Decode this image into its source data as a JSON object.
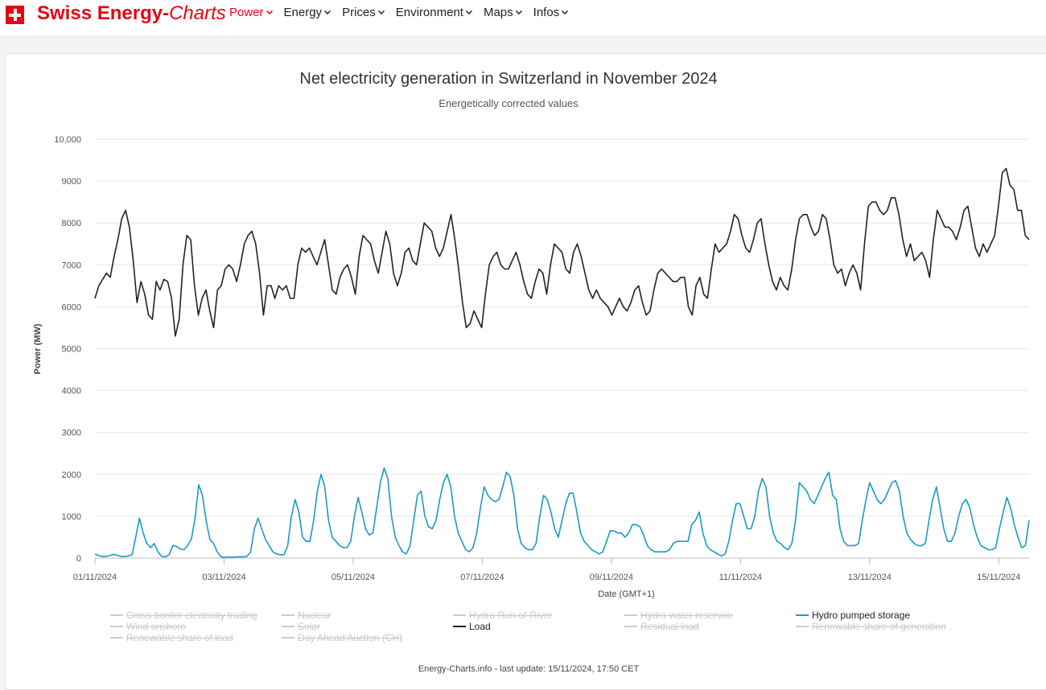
{
  "nav": {
    "brand_main": "Swiss Energy-",
    "brand_italic": "Charts",
    "menu": [
      {
        "label": "Power",
        "active": true
      },
      {
        "label": "Energy",
        "active": false
      },
      {
        "label": "Prices",
        "active": false
      },
      {
        "label": "Environment",
        "active": false
      },
      {
        "label": "Maps",
        "active": false
      },
      {
        "label": "Infos",
        "active": false
      }
    ]
  },
  "chart_data": {
    "type": "line",
    "title": "Net electricity generation in Switzerland in November 2024",
    "subtitle": "Energetically corrected values",
    "xlabel": "Date (GMT+1)",
    "ylabel": "Power (MW)",
    "ylim": [
      0,
      10000
    ],
    "xlim": [
      0,
      14.47
    ],
    "yticks": [
      {
        "value": 0,
        "label": "0"
      },
      {
        "value": 1000,
        "label": "1000"
      },
      {
        "value": 2000,
        "label": "2000"
      },
      {
        "value": 3000,
        "label": "3000"
      },
      {
        "value": 4000,
        "label": "4000"
      },
      {
        "value": 5000,
        "label": "5000"
      },
      {
        "value": 6000,
        "label": "6000"
      },
      {
        "value": 7000,
        "label": "7000"
      },
      {
        "value": 8000,
        "label": "8000"
      },
      {
        "value": 9000,
        "label": "9000"
      },
      {
        "value": 10000,
        "label": "10,000"
      }
    ],
    "xticks": [
      {
        "value": 0,
        "label": "01/11/2024"
      },
      {
        "value": 2,
        "label": "03/11/2024"
      },
      {
        "value": 4,
        "label": "05/11/2024"
      },
      {
        "value": 6,
        "label": "07/11/2024"
      },
      {
        "value": 8,
        "label": "09/11/2024"
      },
      {
        "value": 10,
        "label": "11/11/2024"
      },
      {
        "value": 12,
        "label": "13/11/2024"
      },
      {
        "value": 14,
        "label": "15/11/2024"
      }
    ],
    "series": [
      {
        "name": "Load",
        "color": "#222222",
        "day_offset": 0.0,
        "values": [
          6200,
          6500,
          6650,
          6800,
          6700,
          7200,
          7600,
          8100,
          8300,
          7900,
          7100,
          6100,
          6600,
          6300,
          5800,
          5700,
          6600,
          6400,
          6650,
          6600,
          6200,
          5300,
          5700,
          7000,
          7700,
          7600,
          6500,
          5800,
          6200,
          6400,
          5900,
          5500,
          6400,
          6500,
          6900,
          7000,
          6900,
          6600,
          7000,
          7500,
          7700,
          7800,
          7500,
          6800,
          5800,
          6500,
          6500,
          6200,
          6500,
          6400,
          6500,
          6200,
          6200,
          7000,
          7400,
          7300,
          7400,
          7200,
          7000,
          7300,
          7600,
          7000,
          6400,
          6300,
          6700,
          6900,
          7000,
          6700,
          6300,
          7200,
          7700,
          7600,
          7500,
          7100,
          6800,
          7300,
          7800,
          7500,
          6800,
          6500,
          6800,
          7300,
          7400,
          7100,
          7000,
          7500,
          8000,
          7900,
          7800,
          7400,
          7200,
          7400,
          7800,
          8200,
          7600,
          6900,
          6100,
          5500,
          5600,
          5900,
          5700,
          5500,
          6300,
          7000,
          7200,
          7300,
          7000,
          6900,
          6900,
          7100,
          7300,
          7000,
          6600,
          6300,
          6200,
          6600,
          6900,
          6800,
          6300,
          7000,
          7500,
          7400,
          7300,
          6900,
          6800,
          7300,
          7500,
          7200,
          6800,
          6400,
          6200,
          6400,
          6200,
          6100,
          6000,
          5800,
          6000,
          6200,
          6000,
          5900,
          6100,
          6400,
          6500,
          6100,
          5800,
          5900,
          6400,
          6800,
          6900,
          6800,
          6700,
          6600,
          6600,
          6700,
          6700,
          6000,
          5800,
          6500,
          6700,
          6300,
          6200,
          6900,
          7500,
          7300,
          7400,
          7500,
          7800,
          8200,
          8100,
          7700,
          7400,
          7300,
          7600,
          8000,
          8100,
          7500,
          7000,
          6600,
          6400,
          6700,
          6500,
          6400,
          6900,
          7600,
          8100,
          8200,
          8200,
          7900,
          7700,
          7800,
          8200,
          8100,
          7600,
          7000,
          6800,
          6900,
          6500,
          6800,
          7000,
          6800,
          6400,
          7500,
          8400,
          8500,
          8500,
          8300,
          8200,
          8300,
          8600,
          8600,
          8200,
          7600,
          7200,
          7500,
          7100,
          7200,
          7300,
          7100,
          6700,
          7600,
          8300,
          8100,
          7900,
          7900,
          7800,
          7600,
          7900,
          8300,
          8400,
          7900,
          7400,
          7200,
          7500,
          7300,
          7500,
          7700,
          8400,
          9200,
          9300,
          8900,
          8800,
          8300,
          8300,
          7700,
          7600
        ]
      },
      {
        "name": "Hydro pumped storage",
        "color": "#1a9ac7",
        "day_offset": 0.0,
        "values": [
          100,
          60,
          40,
          40,
          60,
          90,
          70,
          40,
          40,
          50,
          80,
          500,
          950,
          600,
          350,
          250,
          350,
          150,
          40,
          30,
          80,
          300,
          280,
          220,
          200,
          300,
          450,
          950,
          1750,
          1500,
          900,
          450,
          350,
          150,
          30,
          20,
          30,
          20,
          30,
          30,
          30,
          40,
          150,
          700,
          950,
          700,
          450,
          300,
          150,
          100,
          80,
          80,
          300,
          1000,
          1400,
          1100,
          500,
          400,
          400,
          900,
          1600,
          2000,
          1700,
          900,
          500,
          400,
          300,
          250,
          250,
          400,
          1000,
          1450,
          1100,
          700,
          550,
          600,
          1200,
          1800,
          2150,
          1900,
          1000,
          500,
          300,
          150,
          100,
          300,
          900,
          1500,
          1600,
          1000,
          750,
          700,
          900,
          1400,
          1800,
          2000,
          1700,
          1000,
          600,
          400,
          200,
          150,
          250,
          600,
          1200,
          1700,
          1500,
          1400,
          1350,
          1400,
          1700,
          2050,
          1950,
          1500,
          700,
          350,
          250,
          200,
          200,
          350,
          1000,
          1500,
          1400,
          1100,
          700,
          500,
          900,
          1300,
          1550,
          1550,
          1100,
          600,
          400,
          300,
          200,
          150,
          100,
          150,
          400,
          650,
          650,
          600,
          600,
          500,
          600,
          800,
          800,
          750,
          550,
          300,
          200,
          150,
          150,
          150,
          150,
          200,
          350,
          400,
          400,
          400,
          400,
          800,
          900,
          1100,
          600,
          300,
          200,
          150,
          100,
          50,
          100,
          400,
          900,
          1300,
          1300,
          1000,
          700,
          700,
          1000,
          1600,
          1900,
          1700,
          1000,
          600,
          400,
          350,
          250,
          200,
          350,
          900,
          1800,
          1700,
          1600,
          1400,
          1300,
          1500,
          1700,
          1900,
          2050,
          1500,
          1400,
          700,
          400,
          300,
          300,
          300,
          350,
          900,
          1400,
          1800,
          1600,
          1400,
          1300,
          1400,
          1600,
          1800,
          1850,
          1600,
          1000,
          600,
          450,
          350,
          300,
          300,
          350,
          900,
          1400,
          1700,
          1200,
          700,
          400,
          400,
          600,
          1000,
          1300,
          1400,
          1200,
          800,
          500,
          300,
          250,
          200,
          200,
          250,
          700,
          1100,
          1450,
          1200,
          800,
          500,
          250,
          300,
          900
        ]
      }
    ],
    "legend": [
      {
        "label": "Cross border electricity trading",
        "shown": false
      },
      {
        "label": "Nuclear",
        "shown": false
      },
      {
        "label": "Hydro Run-of-River",
        "shown": false
      },
      {
        "label": "Hydro water reservoir",
        "shown": false
      },
      {
        "label": "Hydro pumped storage",
        "shown": true,
        "color": "#1a9ac7"
      },
      {
        "label": "Wind onshore",
        "shown": false
      },
      {
        "label": "Solar",
        "shown": false
      },
      {
        "label": "Load",
        "shown": true,
        "color": "#222222"
      },
      {
        "label": "Residual load",
        "shown": false
      },
      {
        "label": "Renewable share of generation",
        "shown": false
      },
      {
        "label": "Renewable share of load",
        "shown": false
      },
      {
        "label": "Day Ahead Auction (CH)",
        "shown": false
      }
    ],
    "grid": true,
    "legend_position": "bottom"
  },
  "footer": "Energy-Charts.info - last update: 15/11/2024, 17:50 CET"
}
